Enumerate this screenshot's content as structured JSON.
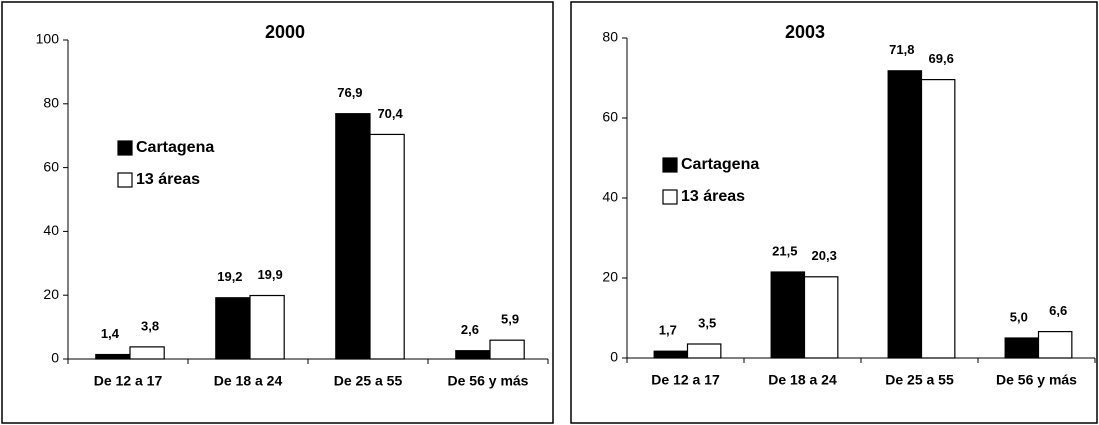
{
  "chart_data": [
    {
      "type": "bar",
      "title": "2000",
      "categories": [
        "De 12 a 17",
        "De 18 a 24",
        "De 25 a 55",
        "De 56 y más"
      ],
      "series": [
        {
          "name": "Cartagena",
          "color": "#000000",
          "values": [
            1.4,
            19.2,
            76.9,
            2.6
          ],
          "value_labels": [
            "1,4",
            "19,2",
            "76,9",
            "2,6"
          ]
        },
        {
          "name": "13 áreas",
          "color": "#ffffff",
          "values": [
            3.8,
            19.9,
            70.4,
            5.9
          ],
          "value_labels": [
            "3,8",
            "19,9",
            "70,4",
            "5,9"
          ]
        }
      ],
      "ylim": [
        0,
        100
      ],
      "yticks": [
        0,
        20,
        40,
        60,
        80,
        100
      ]
    },
    {
      "type": "bar",
      "title": "2003",
      "categories": [
        "De 12 a 17",
        "De 18 a 24",
        "De 25 a 55",
        "De 56 y más"
      ],
      "series": [
        {
          "name": "Cartagena",
          "color": "#000000",
          "values": [
            1.7,
            21.5,
            71.8,
            5.0
          ],
          "value_labels": [
            "1,7",
            "21,5",
            "71,8",
            "5,0"
          ]
        },
        {
          "name": "13 áreas",
          "color": "#ffffff",
          "values": [
            3.5,
            20.3,
            69.6,
            6.6
          ],
          "value_labels": [
            "3,5",
            "20,3",
            "69,6",
            "6,6"
          ]
        }
      ],
      "ylim": [
        0,
        80
      ],
      "yticks": [
        0,
        20,
        40,
        60,
        80
      ]
    }
  ]
}
